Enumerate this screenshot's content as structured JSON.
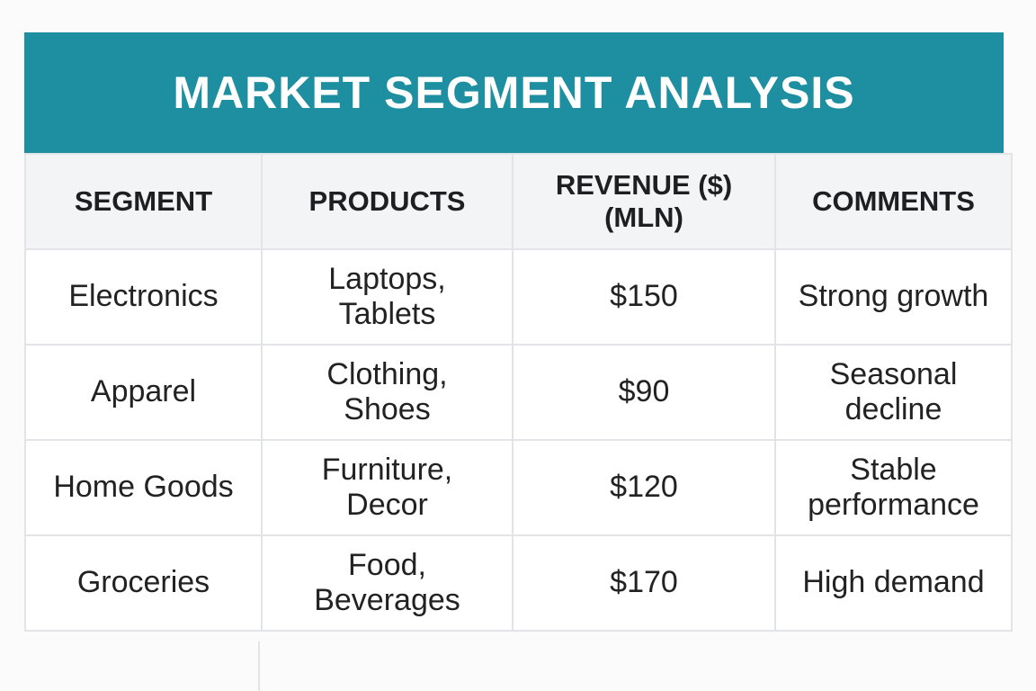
{
  "header": {
    "title": "MARKET SEGMENT ANALYSIS"
  },
  "table": {
    "columns": [
      "SEGMENT",
      "PRODUCTS",
      "REVENUE ($) (MLN)",
      "COMMENTS"
    ],
    "rows": [
      [
        "Electronics",
        "Laptops, Tablets",
        "$150",
        "Strong growth"
      ],
      [
        "Apparel",
        "Clothing, Shoes",
        "$90",
        "Seasonal decline"
      ],
      [
        "Home Goods",
        "Furniture, Decor",
        "$120",
        "Stable performance"
      ],
      [
        "Groceries",
        "Food, Beverages",
        "$170",
        "High demand"
      ]
    ]
  }
}
